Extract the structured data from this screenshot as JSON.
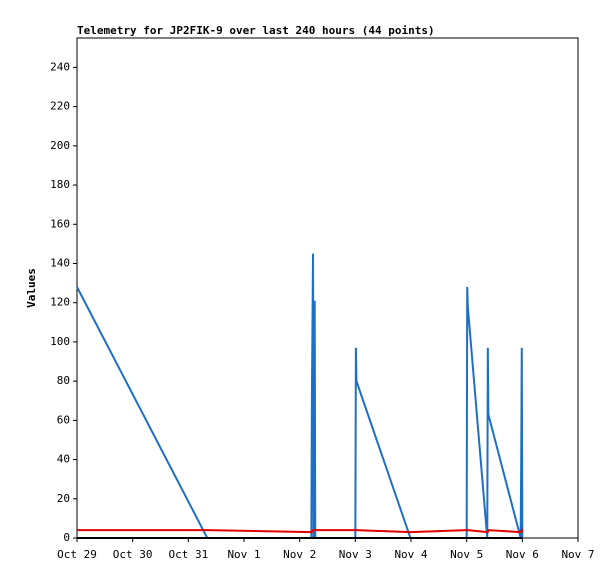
{
  "chart_data": {
    "type": "line",
    "title": "Telemetry for JP2FIK-9 over last 240 hours (44 points)",
    "y_label": "Values",
    "xlim": [
      0,
      9
    ],
    "xticks": [
      {
        "value": 0,
        "label": "Oct 29"
      },
      {
        "value": 1,
        "label": "Oct 30"
      },
      {
        "value": 2,
        "label": "Oct 31"
      },
      {
        "value": 3,
        "label": "Nov 1"
      },
      {
        "value": 4,
        "label": "Nov 2"
      },
      {
        "value": 5,
        "label": "Nov 3"
      },
      {
        "value": 6,
        "label": "Nov 4"
      },
      {
        "value": 7,
        "label": "Nov 5"
      },
      {
        "value": 8,
        "label": "Nov 6"
      },
      {
        "value": 9,
        "label": "Nov 7"
      }
    ],
    "ylim": [
      0,
      255
    ],
    "yticks": [
      0,
      20,
      40,
      60,
      80,
      100,
      120,
      140,
      160,
      180,
      200,
      220,
      240
    ],
    "grid": false,
    "x": [
      0,
      2.34,
      4.21,
      4.22,
      4.24,
      4.25,
      4.27,
      4.28,
      5.0,
      5.01,
      5.02,
      5.99,
      7.0,
      7.01,
      7.02,
      7.37,
      7.38,
      7.39,
      7.97,
      7.98,
      7.99,
      8.0
    ],
    "series": [
      {
        "color": "#1f6fc4",
        "values": [
          128,
          0,
          0,
          72,
          145,
          0,
          121,
          0,
          0,
          97,
          80,
          0,
          0,
          128,
          118,
          0,
          97,
          63,
          0,
          40,
          97,
          0
        ]
      },
      {
        "color": "#e00000",
        "values": [
          4,
          4,
          3,
          3,
          4,
          4,
          4,
          4,
          4,
          4,
          4,
          3,
          4,
          4,
          4,
          3,
          3,
          4,
          3,
          3,
          4,
          3
        ]
      },
      {
        "color": "#000000",
        "values": [
          0,
          0,
          0,
          0,
          0,
          0,
          0,
          0,
          0,
          0,
          0,
          0,
          0,
          0,
          0,
          0,
          0,
          0,
          0,
          0,
          0,
          0
        ]
      }
    ]
  }
}
